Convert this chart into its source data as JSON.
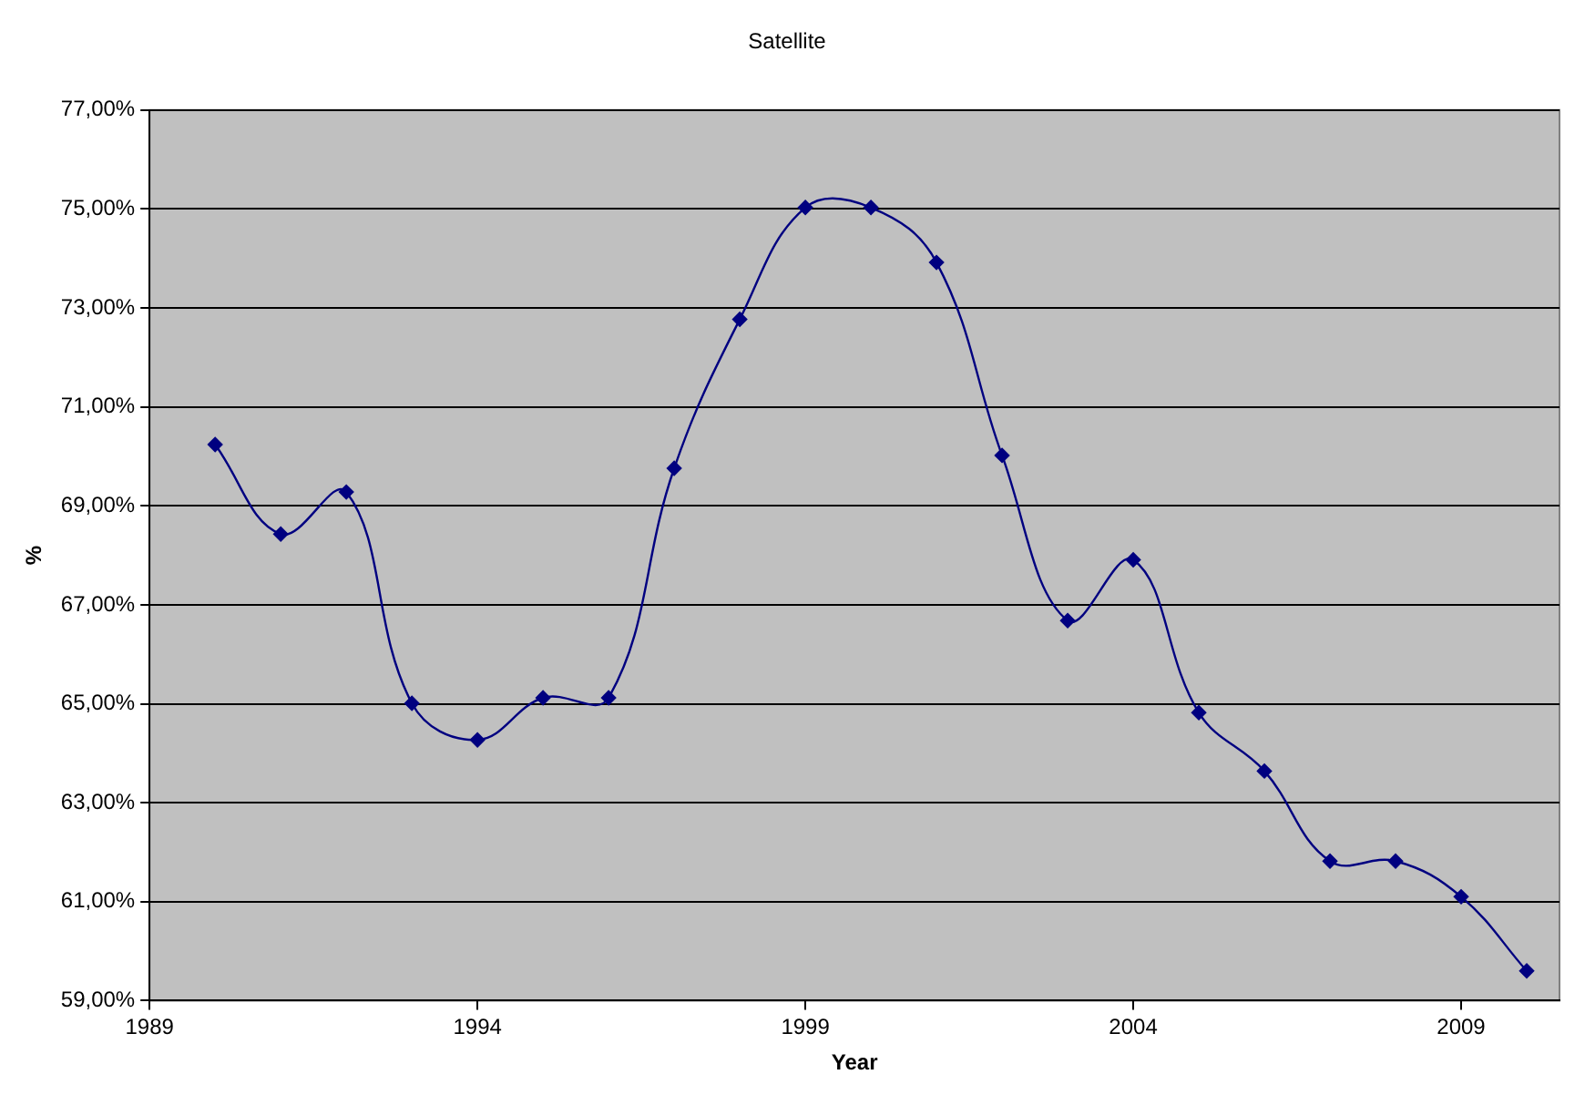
{
  "chart_data": {
    "type": "line",
    "title": "Satellite",
    "xlabel": "Year",
    "ylabel": "%",
    "x": [
      1990,
      1991,
      1992,
      1993,
      1994,
      1995,
      1996,
      1997,
      1998,
      1999,
      2000,
      2001,
      2002,
      2003,
      2004,
      2005,
      2006,
      2007,
      2008,
      2009,
      2010
    ],
    "series": [
      {
        "color": "#000080",
        "values": [
          70.24,
          68.43,
          69.28,
          65.01,
          64.27,
          65.12,
          65.12,
          69.76,
          72.77,
          75.03,
          75.03,
          73.92,
          70.02,
          66.68,
          67.91,
          64.82,
          63.64,
          61.82,
          61.82,
          61.1,
          59.6
        ]
      }
    ],
    "xlim": [
      1989,
      2010.5
    ],
    "xticks": [
      1989,
      1994,
      1999,
      2004,
      2009
    ],
    "ylim": [
      59,
      77
    ],
    "yticks": [
      {
        "value": 59,
        "label": "59,00%"
      },
      {
        "value": 61,
        "label": "61,00%"
      },
      {
        "value": 63,
        "label": "63,00%"
      },
      {
        "value": 65,
        "label": "65,00%"
      },
      {
        "value": 67,
        "label": "67,00%"
      },
      {
        "value": 69,
        "label": "69,00%"
      },
      {
        "value": 71,
        "label": "71,00%"
      },
      {
        "value": 73,
        "label": "73,00%"
      },
      {
        "value": 75,
        "label": "75,00%"
      },
      {
        "value": 77,
        "label": "77,00%"
      }
    ],
    "grid": "y",
    "legend": false,
    "marker": "diamond",
    "line_style": "solid"
  }
}
